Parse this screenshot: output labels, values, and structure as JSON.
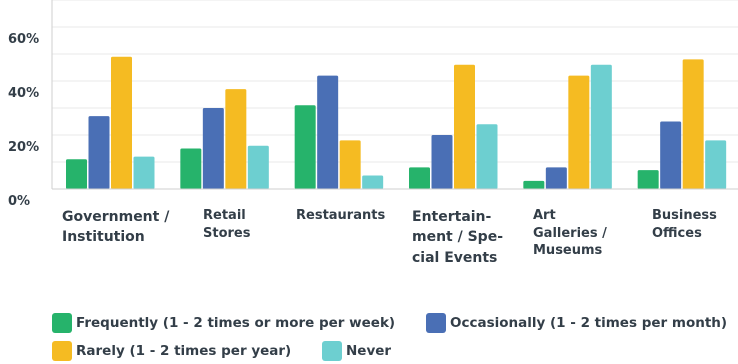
{
  "chart_data": {
    "type": "bar",
    "categories": [
      "Government / Institution",
      "Retail Stores",
      "Restaurants",
      "Entertain- ment / Spe- cial Events",
      "Art Galleries / Museums",
      "Business Offices"
    ],
    "series": [
      {
        "name": "Frequently (1 - 2 times or more per week)",
        "color": "#26b36b",
        "values": [
          11,
          15,
          31,
          8,
          3,
          7
        ]
      },
      {
        "name": "Occasionally (1 - 2 times per month)",
        "color": "#4a6fb5",
        "values": [
          27,
          30,
          42,
          20,
          8,
          25
        ]
      },
      {
        "name": "Rarely (1 - 2 times per year)",
        "color": "#f5bb22",
        "values": [
          49,
          37,
          18,
          46,
          42,
          48
        ]
      },
      {
        "name": "Never",
        "color": "#6dcfd0",
        "values": [
          12,
          16,
          5,
          24,
          46,
          18
        ]
      }
    ],
    "ylim": [
      0,
      70
    ],
    "yticks": [
      "0%",
      "20%",
      "40%",
      "60%"
    ],
    "grid": true,
    "legend_position": "bottom-left"
  }
}
